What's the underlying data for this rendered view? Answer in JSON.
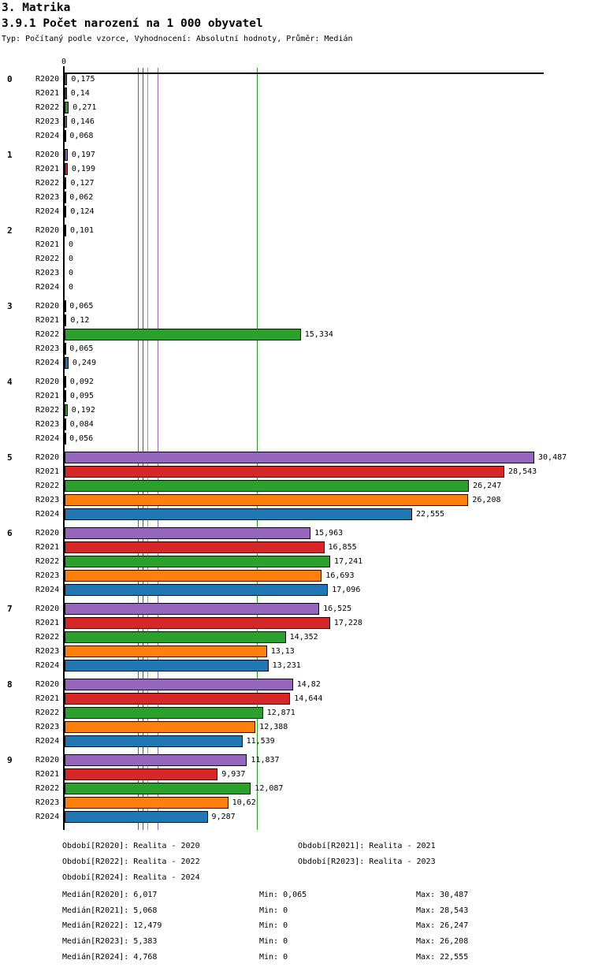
{
  "header": {
    "title": "3. Matrika",
    "subtitle": "3.9.1 Počet narození na 1 000 obyvatel",
    "meta": "Typ: Počítaný podle vzorce, Vyhodnocení: Absolutní hodnoty, Průměr: Medián"
  },
  "chart_data": {
    "type": "bar",
    "orientation": "horizontal",
    "title": "3.9.1 Počet narození na 1 000 obyvatel",
    "axis_zero_label": "0",
    "xlim": [
      0,
      31.1
    ],
    "grid": false,
    "categories": [
      "0",
      "1",
      "2",
      "3",
      "4",
      "5",
      "6",
      "7",
      "8",
      "9"
    ],
    "series": [
      {
        "name": "R2020",
        "color": "#9467bd",
        "values": [
          0.175,
          0.197,
          0.101,
          0.065,
          0.092,
          30.487,
          15.963,
          16.525,
          14.82,
          11.837
        ],
        "labels": [
          "0,175",
          "0,197",
          "0,101",
          "0,065",
          "0,092",
          "30,487",
          "15,963",
          "16,525",
          "14,82",
          "11,837"
        ],
        "median": 6.017,
        "median_label": "6,017"
      },
      {
        "name": "R2021",
        "color": "#d62728",
        "values": [
          0.14,
          0.199,
          0,
          0.12,
          0.095,
          28.543,
          16.855,
          17.228,
          14.644,
          9.937
        ],
        "labels": [
          "0,14",
          "0,199",
          "0",
          "0,12",
          "0,095",
          "28,543",
          "16,855",
          "17,228",
          "14,644",
          "9,937"
        ],
        "median": 5.068,
        "median_label": "5,068"
      },
      {
        "name": "R2022",
        "color": "#2ca02c",
        "values": [
          0.271,
          0.127,
          0,
          15.334,
          0.192,
          26.247,
          17.241,
          14.352,
          12.871,
          12.087
        ],
        "labels": [
          "0,271",
          "0,127",
          "0",
          "15,334",
          "0,192",
          "26,247",
          "17,241",
          "14,352",
          "12,871",
          "12,087"
        ],
        "median": 12.479,
        "median_label": "12,479"
      },
      {
        "name": "R2023",
        "color": "#ff7f0e",
        "values": [
          0.146,
          0.062,
          0,
          0.065,
          0.084,
          26.208,
          16.693,
          13.13,
          12.388,
          10.62
        ],
        "labels": [
          "0,146",
          "0,062",
          "0",
          "0,065",
          "0,084",
          "26,208",
          "16,693",
          "13,13",
          "12,388",
          "10,62"
        ],
        "median": 5.383,
        "median_label": "5,383"
      },
      {
        "name": "R2024",
        "color": "#1f77b4",
        "values": [
          0.068,
          0.124,
          0,
          0.249,
          0.056,
          22.555,
          17.096,
          13.231,
          11.539,
          9.287
        ],
        "labels": [
          "0,068",
          "0,124",
          "0",
          "0,249",
          "0,056",
          "22,555",
          "17,096",
          "13,231",
          "11,539",
          "9,287"
        ],
        "median": 4.768,
        "median_label": "4,768"
      }
    ]
  },
  "legend": {
    "periods": [
      "Období[R2020]: Realita - 2020",
      "Období[R2021]: Realita - 2021",
      "Období[R2022]: Realita - 2022",
      "Období[R2023]: Realita - 2023",
      "Období[R2024]: Realita - 2024"
    ],
    "stats": [
      {
        "median": "Medián[R2020]: 6,017",
        "min": "Min: 0,065",
        "max": "Max: 30,487"
      },
      {
        "median": "Medián[R2021]: 5,068",
        "min": "Min: 0",
        "max": "Max: 28,543"
      },
      {
        "median": "Medián[R2022]: 12,479",
        "min": "Min: 0",
        "max": "Max: 26,247"
      },
      {
        "median": "Medián[R2023]: 5,383",
        "min": "Min: 0",
        "max": "Max: 26,208"
      },
      {
        "median": "Medián[R2024]: 4,768",
        "min": "Min: 0",
        "max": "Max: 22,555"
      }
    ]
  }
}
